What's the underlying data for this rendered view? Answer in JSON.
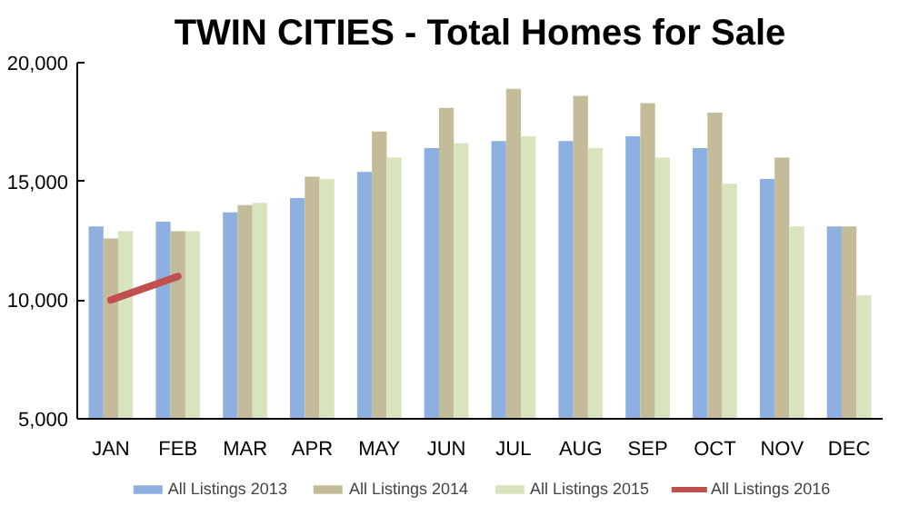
{
  "chart_data": {
    "type": "bar",
    "title": "TWIN CITIES - Total Homes for Sale",
    "categories": [
      "JAN",
      "FEB",
      "MAR",
      "APR",
      "MAY",
      "JUN",
      "JUL",
      "AUG",
      "SEP",
      "OCT",
      "NOV",
      "DEC"
    ],
    "series": [
      {
        "name": "All Listings 2013",
        "color": "#8eb0e0",
        "values": [
          13100,
          13300,
          13700,
          14300,
          15400,
          16400,
          16700,
          16700,
          16900,
          16400,
          15100,
          13100
        ]
      },
      {
        "name": "All Listings 2014",
        "color": "#c4bc98",
        "values": [
          12600,
          12900,
          14000,
          15200,
          17100,
          18100,
          18900,
          18600,
          18300,
          17900,
          16000,
          13100
        ]
      },
      {
        "name": "All Listings 2015",
        "color": "#d7e4bd",
        "values": [
          12900,
          12900,
          14100,
          15100,
          16000,
          16600,
          16900,
          16400,
          16000,
          14900,
          13100,
          10200
        ]
      },
      {
        "name": "All Listings 2016",
        "color": "#c0504d",
        "type": "line",
        "values": [
          10000,
          11000,
          null,
          null,
          null,
          null,
          null,
          null,
          null,
          null,
          null,
          null
        ]
      }
    ],
    "ylim": [
      5000,
      20000
    ],
    "yticks": [
      {
        "value": 5000,
        "label": "5,000"
      },
      {
        "value": 10000,
        "label": "10,000"
      },
      {
        "value": 15000,
        "label": "15,000"
      },
      {
        "value": 20000,
        "label": "20,000"
      }
    ],
    "grid": false,
    "legend": "bottom"
  }
}
